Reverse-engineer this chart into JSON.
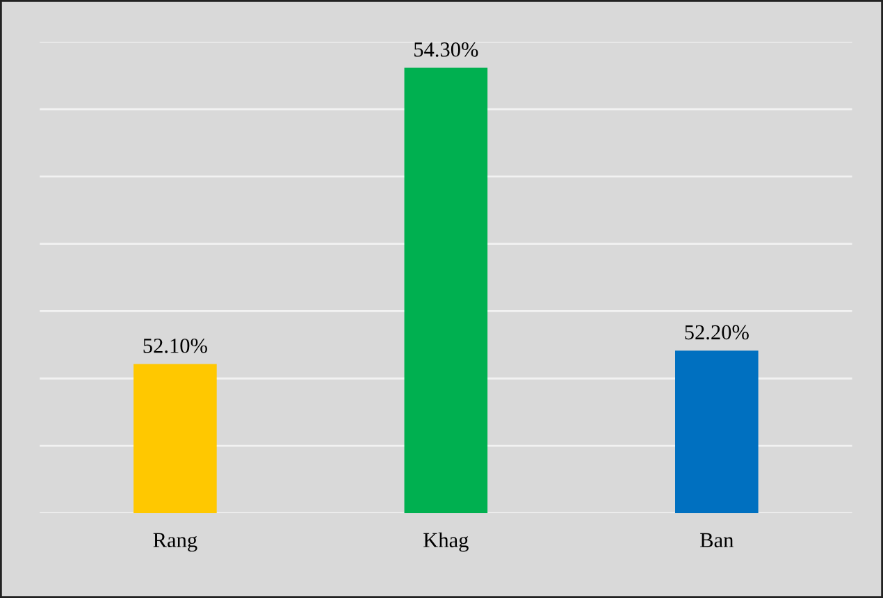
{
  "chart_data": {
    "type": "bar",
    "categories": [
      "Rang",
      "Khag",
      "Ban"
    ],
    "values": [
      52.1,
      54.3,
      52.2
    ],
    "colors": [
      "#ffc800",
      "#00b050",
      "#0070c0"
    ],
    "value_labels": [
      "52.10%",
      "54.30%",
      "52.20%"
    ],
    "ylim": [
      51,
      54.5
    ],
    "yticks": [
      {
        "value": 51,
        "label": null
      },
      {
        "value": 51.5,
        "label": null
      },
      {
        "value": 52,
        "label": null
      },
      {
        "value": 52.5,
        "label": null
      },
      {
        "value": 53,
        "label": null
      },
      {
        "value": 53.5,
        "label": null
      },
      {
        "value": 54,
        "label": null
      },
      {
        "value": 54.5,
        "label": null
      }
    ],
    "grid": "y",
    "tick_labels": "x"
  }
}
